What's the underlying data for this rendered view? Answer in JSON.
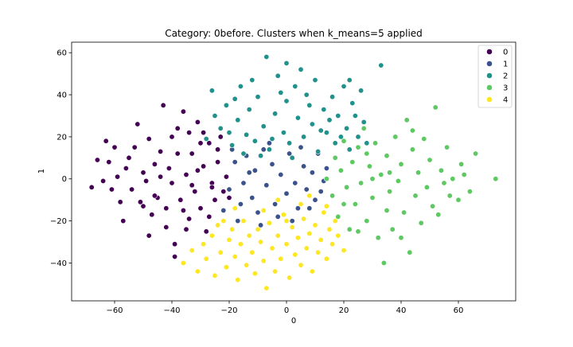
{
  "chart_data": {
    "type": "scatter",
    "title": "Category: 0before. Clusters when k_means=5 applied",
    "xlabel": "0",
    "ylabel": "1",
    "xlim": [
      -75,
      80
    ],
    "ylim": [
      -58,
      65
    ],
    "xticks": [
      -60,
      -40,
      -20,
      0,
      20,
      40,
      60
    ],
    "yticks": [
      -40,
      -20,
      0,
      20,
      40,
      60
    ],
    "grid": false,
    "legend_position": "top-right",
    "series": [
      {
        "name": "0",
        "color": "#440154",
        "points": [
          [
            -68,
            -4
          ],
          [
            -66,
            9
          ],
          [
            -64,
            -1
          ],
          [
            -63,
            18
          ],
          [
            -62,
            8
          ],
          [
            -61,
            -5
          ],
          [
            -60,
            15
          ],
          [
            -59,
            1
          ],
          [
            -58,
            -11
          ],
          [
            -57,
            -20
          ],
          [
            -56,
            5
          ],
          [
            -55,
            10
          ],
          [
            -54,
            -5
          ],
          [
            -53,
            15
          ],
          [
            -52,
            26
          ],
          [
            -51,
            -11
          ],
          [
            -50,
            3
          ],
          [
            -49,
            -1
          ],
          [
            -48,
            19
          ],
          [
            -47,
            -17
          ],
          [
            -46,
            7
          ],
          [
            -45,
            -9
          ],
          [
            -44,
            13
          ],
          [
            -43,
            35
          ],
          [
            -42,
            -23
          ],
          [
            -41,
            5
          ],
          [
            -40,
            -2
          ],
          [
            -39,
            -31
          ],
          [
            -38,
            24
          ],
          [
            -37,
            -10
          ],
          [
            -36,
            32
          ],
          [
            -35,
            2
          ],
          [
            -34,
            -19
          ],
          [
            -33,
            12
          ],
          [
            -32,
            -6
          ],
          [
            -31,
            27
          ],
          [
            -30,
            -14
          ],
          [
            -29,
            6
          ],
          [
            -28,
            -25
          ],
          [
            -27,
            17
          ],
          [
            -26,
            -2
          ],
          [
            -25,
            -10
          ],
          [
            -24,
            8
          ],
          [
            -23,
            20
          ],
          [
            -22,
            -6
          ],
          [
            -21,
            1
          ],
          [
            -42,
            -14
          ],
          [
            -38,
            12
          ],
          [
            -35,
            -24
          ],
          [
            -33,
            -3
          ],
          [
            -30,
            17
          ],
          [
            -27,
            -18
          ],
          [
            -24,
            14
          ],
          [
            -20,
            -9
          ],
          [
            -44,
            1
          ],
          [
            -46,
            -8
          ],
          [
            -36,
            -15
          ],
          [
            -31,
            4
          ],
          [
            -26,
            -4
          ],
          [
            -29,
            22
          ],
          [
            -48,
            -27
          ],
          [
            -39,
            -37
          ],
          [
            -50,
            -13
          ],
          [
            -40,
            20
          ],
          [
            -34,
            22
          ]
        ]
      },
      {
        "name": "1",
        "color": "#3b528b",
        "points": [
          [
            -22,
            -15
          ],
          [
            -20,
            -5
          ],
          [
            -18,
            8
          ],
          [
            -17,
            -20
          ],
          [
            -15,
            -2
          ],
          [
            -14,
            11
          ],
          [
            -12,
            -9
          ],
          [
            -11,
            4
          ],
          [
            -10,
            -16
          ],
          [
            -8,
            14
          ],
          [
            -7,
            -3
          ],
          [
            -5,
            7
          ],
          [
            -4,
            -12
          ],
          [
            -2,
            2
          ],
          [
            0,
            -7
          ],
          [
            1,
            12
          ],
          [
            3,
            -2
          ],
          [
            4,
            -14
          ],
          [
            6,
            6
          ],
          [
            7,
            -5
          ],
          [
            9,
            3
          ],
          [
            10,
            -10
          ],
          [
            11,
            12
          ],
          [
            13,
            -1
          ],
          [
            14,
            5
          ],
          [
            -16,
            -12
          ],
          [
            -13,
            3
          ],
          [
            -9,
            -22
          ],
          [
            -6,
            17
          ],
          [
            -3,
            -18
          ],
          [
            2,
            -20
          ],
          [
            5,
            15
          ],
          [
            8,
            -14
          ],
          [
            12,
            -6
          ],
          [
            -19,
            14
          ]
        ]
      },
      {
        "name": "2",
        "color": "#21918c",
        "points": [
          [
            -28,
            19
          ],
          [
            -26,
            42
          ],
          [
            -25,
            30
          ],
          [
            -23,
            24
          ],
          [
            -21,
            35
          ],
          [
            -19,
            16
          ],
          [
            -17,
            28
          ],
          [
            -16,
            44
          ],
          [
            -14,
            21
          ],
          [
            -13,
            33
          ],
          [
            -11,
            18
          ],
          [
            -10,
            39
          ],
          [
            -8,
            25
          ],
          [
            -7,
            58
          ],
          [
            -6,
            14
          ],
          [
            -4,
            31
          ],
          [
            -3,
            49
          ],
          [
            -1,
            22
          ],
          [
            0,
            37
          ],
          [
            1,
            17
          ],
          [
            3,
            44
          ],
          [
            4,
            29
          ],
          [
            5,
            52
          ],
          [
            6,
            20
          ],
          [
            8,
            35
          ],
          [
            9,
            26
          ],
          [
            10,
            47
          ],
          [
            11,
            13
          ],
          [
            13,
            33
          ],
          [
            14,
            22
          ],
          [
            16,
            39
          ],
          [
            17,
            17
          ],
          [
            18,
            30
          ],
          [
            20,
            44
          ],
          [
            21,
            24
          ],
          [
            22,
            14
          ],
          [
            23,
            36
          ],
          [
            25,
            20
          ],
          [
            26,
            42
          ],
          [
            27,
            27
          ],
          [
            28,
            17
          ],
          [
            33,
            54
          ],
          [
            -20,
            22
          ],
          [
            -15,
            12
          ],
          [
            -9,
            11
          ],
          [
            2,
            10
          ],
          [
            12,
            23
          ],
          [
            19,
            20
          ],
          [
            -2,
            41
          ],
          [
            7,
            40
          ],
          [
            15,
            28
          ],
          [
            24,
            30
          ],
          [
            -12,
            47
          ],
          [
            0,
            55
          ],
          [
            -5,
            19
          ],
          [
            -18,
            38
          ],
          [
            22,
            47
          ]
        ]
      },
      {
        "name": "3",
        "color": "#5ec962",
        "points": [
          [
            14,
            0
          ],
          [
            16,
            -8
          ],
          [
            17,
            10
          ],
          [
            18,
            -18
          ],
          [
            19,
            4
          ],
          [
            20,
            18
          ],
          [
            21,
            -4
          ],
          [
            22,
            -24
          ],
          [
            23,
            8
          ],
          [
            24,
            -12
          ],
          [
            25,
            15
          ],
          [
            26,
            -2
          ],
          [
            27,
            24
          ],
          [
            28,
            -20
          ],
          [
            29,
            6
          ],
          [
            30,
            -9
          ],
          [
            31,
            17
          ],
          [
            32,
            -28
          ],
          [
            33,
            2
          ],
          [
            34,
            -40
          ],
          [
            35,
            11
          ],
          [
            36,
            -6
          ],
          [
            37,
            -24
          ],
          [
            38,
            20
          ],
          [
            39,
            -1
          ],
          [
            40,
            7
          ],
          [
            41,
            -16
          ],
          [
            42,
            28
          ],
          [
            43,
            -35
          ],
          [
            44,
            14
          ],
          [
            45,
            -8
          ],
          [
            46,
            3
          ],
          [
            47,
            -21
          ],
          [
            48,
            19
          ],
          [
            49,
            -4
          ],
          [
            50,
            9
          ],
          [
            51,
            -13
          ],
          [
            52,
            34
          ],
          [
            53,
            -17
          ],
          [
            54,
            4
          ],
          [
            55,
            -2
          ],
          [
            56,
            15
          ],
          [
            57,
            -8
          ],
          [
            58,
            0
          ],
          [
            60,
            -10
          ],
          [
            61,
            7
          ],
          [
            62,
            2
          ],
          [
            64,
            -6
          ],
          [
            66,
            12
          ],
          [
            73,
            0
          ],
          [
            30,
            0
          ],
          [
            35,
            -15
          ],
          [
            40,
            -28
          ],
          [
            44,
            23
          ],
          [
            25,
            -25
          ],
          [
            20,
            -12
          ],
          [
            28,
            12
          ],
          [
            36,
            3
          ]
        ]
      },
      {
        "name": "4",
        "color": "#fde725",
        "points": [
          [
            -36,
            -40
          ],
          [
            -33,
            -34
          ],
          [
            -31,
            -44
          ],
          [
            -29,
            -31
          ],
          [
            -28,
            -38
          ],
          [
            -26,
            -27
          ],
          [
            -25,
            -46
          ],
          [
            -24,
            -22
          ],
          [
            -23,
            -35
          ],
          [
            -21,
            -42
          ],
          [
            -20,
            -29
          ],
          [
            -19,
            -24
          ],
          [
            -18,
            -37
          ],
          [
            -17,
            -48
          ],
          [
            -16,
            -31
          ],
          [
            -15,
            -20
          ],
          [
            -14,
            -41
          ],
          [
            -13,
            -27
          ],
          [
            -12,
            -35
          ],
          [
            -11,
            -45
          ],
          [
            -10,
            -24
          ],
          [
            -9,
            -30
          ],
          [
            -8,
            -39
          ],
          [
            -7,
            -52
          ],
          [
            -6,
            -21
          ],
          [
            -5,
            -33
          ],
          [
            -4,
            -44
          ],
          [
            -3,
            -27
          ],
          [
            -2,
            -38
          ],
          [
            -1,
            -17
          ],
          [
            0,
            -31
          ],
          [
            1,
            -47
          ],
          [
            2,
            -23
          ],
          [
            3,
            -36
          ],
          [
            4,
            -28
          ],
          [
            5,
            -41
          ],
          [
            6,
            -19
          ],
          [
            7,
            -33
          ],
          [
            8,
            -26
          ],
          [
            9,
            -44
          ],
          [
            10,
            -22
          ],
          [
            11,
            -35
          ],
          [
            12,
            -29
          ],
          [
            13,
            -16
          ],
          [
            14,
            -38
          ],
          [
            15,
            -24
          ],
          [
            16,
            -31
          ],
          [
            17,
            -20
          ],
          [
            18,
            -27
          ],
          [
            20,
            -34
          ],
          [
            -22,
            -20
          ],
          [
            -3,
            -10
          ],
          [
            0,
            -20
          ],
          [
            5,
            -12
          ],
          [
            -8,
            -15
          ],
          [
            14,
            -13
          ],
          [
            -18,
            -14
          ],
          [
            8,
            -8
          ]
        ]
      }
    ]
  }
}
